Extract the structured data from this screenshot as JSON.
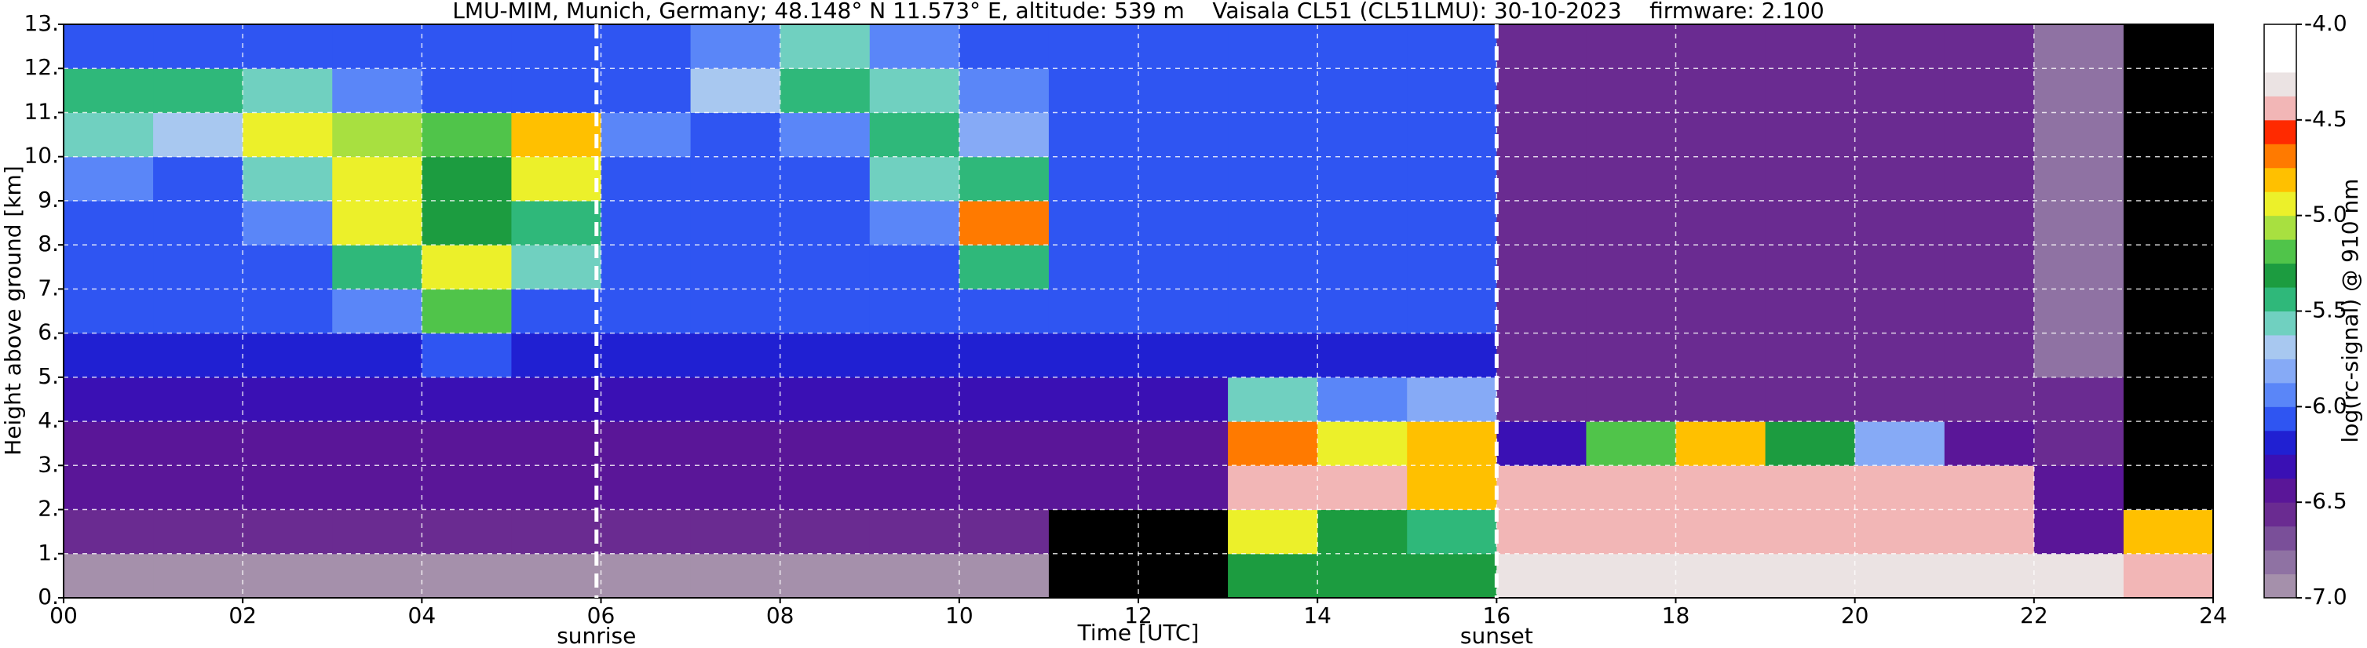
{
  "chart_data": {
    "type": "heatmap",
    "title": "LMU-MIM, Munich, Germany; 48.148° N 11.573° E, altitude: 539 m    Vaisala CL51 (CL51LMU): 30-10-2023    firmware: 2.100",
    "x_label": "Time [UTC]",
    "y_label": "Height above ground [km]",
    "colorbar_label": "log(rc-signal) @ 910 nm",
    "xbins": [
      0,
      1,
      2,
      3,
      4,
      5,
      6,
      7,
      8,
      9,
      10,
      11,
      12,
      13,
      14,
      15,
      16,
      17,
      18,
      19,
      20,
      21,
      22,
      23,
      24
    ],
    "ybins": [
      0,
      1,
      2,
      3,
      4,
      5,
      6,
      7,
      8,
      9,
      10,
      11,
      12,
      13
    ],
    "z": [
      [
        -6.9,
        -6.9,
        -6.9,
        -6.9,
        -6.9,
        -6.9,
        -6.9,
        -6.9,
        -6.9,
        -6.9,
        -6.9,
        -7.5,
        -7.5,
        -5.3,
        -5.3,
        -5.3,
        -4.3,
        -4.3,
        -4.3,
        -4.3,
        -4.3,
        -4.3,
        -4.3,
        -4.5
      ],
      [
        -6.6,
        -6.6,
        -6.6,
        -6.6,
        -6.6,
        -6.6,
        -6.6,
        -6.6,
        -6.6,
        -6.6,
        -6.6,
        -7.5,
        -7.5,
        -5.0,
        -5.3,
        -5.5,
        -4.4,
        -4.4,
        -4.4,
        -4.4,
        -4.4,
        -4.4,
        -6.5,
        -4.8
      ],
      [
        -6.5,
        -6.5,
        -6.5,
        -6.5,
        -6.5,
        -6.5,
        -6.5,
        -6.5,
        -6.5,
        -6.5,
        -6.5,
        -6.4,
        -6.4,
        -4.5,
        -4.5,
        -4.8,
        -4.5,
        -4.5,
        -4.4,
        -4.4,
        -4.4,
        -4.4,
        -6.5,
        -7.5
      ],
      [
        -6.4,
        -6.4,
        -6.4,
        -6.4,
        -6.4,
        -6.4,
        -6.4,
        -6.4,
        -6.4,
        -6.4,
        -6.4,
        -6.4,
        -6.4,
        -4.7,
        -5.0,
        -4.8,
        -6.3,
        -5.2,
        -4.8,
        -5.3,
        -5.8,
        -6.4,
        -6.6,
        -7.5
      ],
      [
        -6.3,
        -6.3,
        -6.3,
        -6.3,
        -6.3,
        -6.3,
        -6.3,
        -6.3,
        -6.3,
        -6.3,
        -6.3,
        -6.3,
        -6.3,
        -5.6,
        -6.0,
        -5.8,
        -6.6,
        -6.6,
        -6.6,
        -6.6,
        -6.6,
        -6.6,
        -6.6,
        -7.5
      ],
      [
        -6.2,
        -6.2,
        -6.2,
        -6.2,
        -6.1,
        -6.2,
        -6.2,
        -6.2,
        -6.2,
        -6.2,
        -6.2,
        -6.2,
        -6.2,
        -6.2,
        -6.2,
        -6.2,
        -6.6,
        -6.6,
        -6.6,
        -6.6,
        -6.6,
        -6.6,
        -6.8,
        -7.5
      ],
      [
        -6.1,
        -6.1,
        -6.1,
        -5.9,
        -5.2,
        -6.1,
        -6.1,
        -6.1,
        -6.1,
        -6.1,
        -6.1,
        -6.1,
        -6.1,
        -6.1,
        -6.1,
        -6.1,
        -6.6,
        -6.6,
        -6.6,
        -6.6,
        -6.6,
        -6.6,
        -6.8,
        -7.5
      ],
      [
        -6.1,
        -6.1,
        -6.1,
        -5.4,
        -5.0,
        -5.6,
        -6.1,
        -6.1,
        -6.1,
        -6.1,
        -5.4,
        -6.1,
        -6.1,
        -6.1,
        -6.1,
        -6.1,
        -6.6,
        -6.6,
        -6.6,
        -6.6,
        -6.6,
        -6.6,
        -6.8,
        -7.5
      ],
      [
        -6.1,
        -6.1,
        -6.0,
        -5.0,
        -5.3,
        -5.4,
        -6.1,
        -6.1,
        -6.1,
        -5.9,
        -4.7,
        -6.1,
        -6.1,
        -6.1,
        -6.1,
        -6.1,
        -6.6,
        -6.6,
        -6.6,
        -6.6,
        -6.6,
        -6.6,
        -6.8,
        -7.5
      ],
      [
        -6.0,
        -6.1,
        -5.6,
        -4.9,
        -5.3,
        -5.0,
        -6.1,
        -6.1,
        -6.1,
        -5.6,
        -5.5,
        -6.1,
        -6.1,
        -6.1,
        -6.1,
        -6.1,
        -6.6,
        -6.6,
        -6.6,
        -6.6,
        -6.6,
        -6.6,
        -6.8,
        -7.5
      ],
      [
        -5.6,
        -5.7,
        -5.0,
        -5.1,
        -5.2,
        -4.8,
        -5.9,
        -6.1,
        -6.0,
        -5.5,
        -5.8,
        -6.1,
        -6.1,
        -6.1,
        -6.1,
        -6.1,
        -6.6,
        -6.6,
        -6.6,
        -6.6,
        -6.6,
        -6.6,
        -6.8,
        -7.5
      ],
      [
        -5.5,
        -5.5,
        -5.6,
        -6.0,
        -6.1,
        -6.1,
        -6.1,
        -5.7,
        -5.5,
        -5.6,
        -6.0,
        -6.1,
        -6.1,
        -6.1,
        -6.1,
        -6.1,
        -6.6,
        -6.6,
        -6.6,
        -6.6,
        -6.6,
        -6.6,
        -6.8,
        -7.5
      ],
      [
        -6.1,
        -6.1,
        -6.1,
        -6.1,
        -6.1,
        -6.1,
        -6.1,
        -6.0,
        -5.6,
        -6.0,
        -6.1,
        -6.1,
        -6.1,
        -6.1,
        -6.1,
        -6.1,
        -6.6,
        -6.6,
        -6.6,
        -6.6,
        -6.6,
        -6.6,
        -6.8,
        -7.5
      ]
    ],
    "zlim": [
      -7,
      -4
    ],
    "colorscale": [
      "#a590ab",
      "#8f72a3",
      "#7a4f99",
      "#6a2b91",
      "#5a1698",
      "#3a10b4",
      "#2020d2",
      "#2f55f2",
      "#5a86f8",
      "#86aaf6",
      "#a8c8f0",
      "#70d0c0",
      "#2fb87a",
      "#1c9c40",
      "#50c44a",
      "#a8e040",
      "#ecf02a",
      "#ffc000",
      "#ff7a00",
      "#ff2a00",
      "#f2b6b6",
      "#ebe3e3",
      "#ffffff",
      "#ffffff"
    ],
    "under_color": "#000000",
    "xlim": [
      0,
      24
    ],
    "ylim": [
      0,
      13
    ],
    "xticks": [
      {
        "value": 0,
        "label": "00"
      },
      {
        "value": 2,
        "label": "02"
      },
      {
        "value": 4,
        "label": "04"
      },
      {
        "value": 6,
        "label": "06"
      },
      {
        "value": 8,
        "label": "08"
      },
      10,
      12,
      14,
      16,
      18,
      20,
      22,
      24
    ],
    "yticks": [
      {
        "value": 0,
        "label": "0."
      },
      {
        "value": 1,
        "label": "1."
      },
      {
        "value": 2,
        "label": "2."
      },
      {
        "value": 3,
        "label": "3."
      },
      {
        "value": 4,
        "label": "4."
      },
      {
        "value": 5,
        "label": "5."
      },
      {
        "value": 6,
        "label": "6."
      },
      {
        "value": 7,
        "label": "7."
      },
      {
        "value": 8,
        "label": "8."
      },
      {
        "value": 9,
        "label": "9."
      },
      {
        "value": 10,
        "label": "10."
      },
      {
        "value": 11,
        "label": "11."
      },
      {
        "value": 12,
        "label": "12."
      },
      {
        "value": 13,
        "label": "13."
      }
    ],
    "zticks": [
      {
        "value": -7,
        "label": "-7.0"
      },
      {
        "value": -6.5,
        "label": "-6.5"
      },
      {
        "value": -6,
        "label": "-6.0"
      },
      {
        "value": -5.5,
        "label": "-5.5"
      },
      {
        "value": -5,
        "label": "-5.0"
      },
      {
        "value": -4.5,
        "label": "-4.5"
      },
      {
        "value": -4,
        "label": "-4.0"
      }
    ],
    "annotations": [
      {
        "x": 5.95,
        "label": "sunrise"
      },
      {
        "x": 16,
        "label": "sunset"
      }
    ],
    "grid": true
  }
}
